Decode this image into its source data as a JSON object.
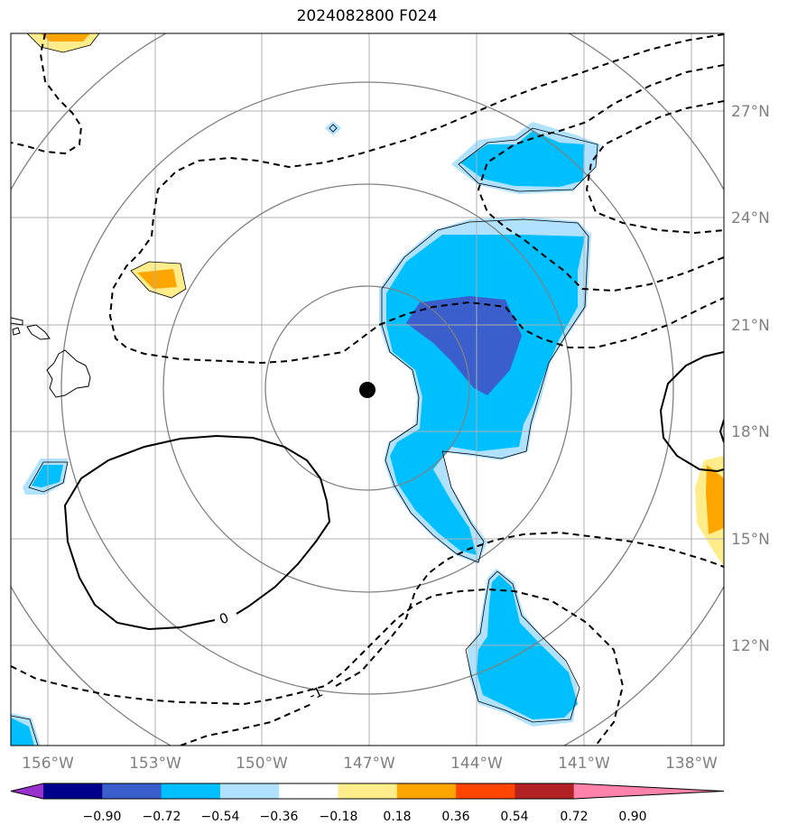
{
  "title": "2024082800 F024",
  "longitude_labels": [
    "156°W",
    "153°W",
    "150°W",
    "147°W",
    "144°W",
    "141°W",
    "138°W"
  ],
  "latitude_labels": [
    "27°N",
    "24°N",
    "21°N",
    "18°N",
    "15°N",
    "12°N"
  ],
  "contour_labels": [
    "0",
    "-1"
  ],
  "colorbar": {
    "ticks": [
      "−0.90",
      "−0.72",
      "−0.54",
      "−0.36",
      "−0.18",
      "0.18",
      "0.36",
      "0.54",
      "0.72",
      "0.90"
    ],
    "colors": [
      "#9932cc",
      "#00008b",
      "#3a5fcd",
      "#00bfff",
      "#b0e2ff",
      "#ffffff",
      "#ffec8b",
      "#ffa500",
      "#ff4500",
      "#b22222",
      "#ff82ab"
    ]
  },
  "storm_center": {
    "lon": "147°W",
    "lat": "19.2°N"
  }
}
